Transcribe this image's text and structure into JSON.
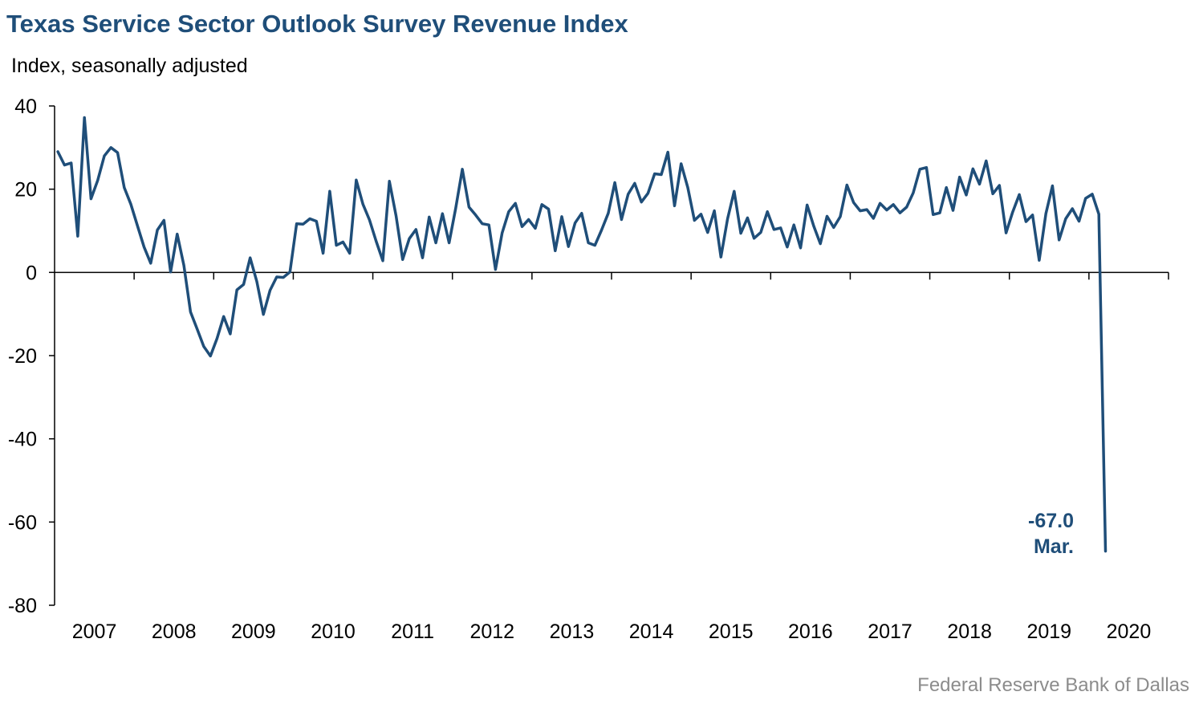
{
  "chart_data": {
    "type": "line",
    "title": "Texas Service Sector Outlook Survey Revenue Index",
    "subtitle": "Index, seasonally adjusted",
    "source": "Federal Reserve Bank of Dallas",
    "ylim": [
      -80,
      40
    ],
    "yticks": [
      40,
      20,
      0,
      -20,
      -40,
      -60,
      -80
    ],
    "ytick_labels": [
      "40",
      "20",
      "0",
      "-20",
      "-40",
      "-60",
      "-80"
    ],
    "x_start": "2007-01",
    "xticks": [
      "2007",
      "2008",
      "2009",
      "2010",
      "2011",
      "2012",
      "2013",
      "2014",
      "2015",
      "2016",
      "2017",
      "2018",
      "2019",
      "2020"
    ],
    "grid": false,
    "line_color": "#1f4e79",
    "series": [
      {
        "values": [
          29,
          25.8,
          26.3,
          8.7,
          37.2,
          17.7,
          22.1,
          28,
          30,
          28.8,
          20.4,
          16.4,
          11.2,
          6.1,
          2.2,
          10.2,
          12.5,
          0.1,
          9.2,
          1.7,
          -9.5,
          -13.6,
          -17.8,
          -20.1,
          -15.9,
          -10.6,
          -14.8,
          -4.2,
          -2.9,
          3.5,
          -2.2,
          -10.1,
          -4.3,
          -1.1,
          -1.2,
          0.1,
          11.7,
          11.6,
          12.9,
          12.3,
          4.6,
          19.5,
          6.5,
          7.3,
          4.6,
          22.2,
          16.4,
          12.6,
          7.5,
          2.8,
          21.9,
          13.6,
          3.1,
          8.1,
          10.3,
          3.5,
          13.3,
          7.1,
          14.1,
          7.1,
          15.4,
          24.8,
          15.7,
          13.8,
          11.7,
          11.4,
          0.7,
          9.5,
          14.6,
          16.6,
          11,
          12.7,
          10.6,
          16.3,
          15.2,
          5.2,
          13.4,
          6.2,
          11.9,
          14.2,
          7.1,
          6.5,
          10.2,
          14.2,
          21.6,
          12.7,
          18.8,
          21.4,
          16.9,
          19,
          23.7,
          23.5,
          28.9,
          16,
          26.1,
          20.4,
          12.5,
          14,
          9.6,
          14.8,
          3.7,
          12.9,
          19.5,
          9.4,
          13.1,
          8.2,
          9.6,
          14.6,
          10.3,
          10.7,
          6.1,
          11.4,
          5.9,
          16.2,
          11.1,
          6.9,
          13.5,
          10.8,
          13.4,
          21,
          16.8,
          14.8,
          15.1,
          13,
          16.6,
          15,
          16.3,
          14.3,
          15.7,
          19.1,
          24.8,
          25.2,
          13.9,
          14.3,
          20.4,
          14.9,
          22.9,
          18.6,
          24.9,
          21.2,
          26.8,
          18.9,
          20.9,
          9.5,
          14.5,
          18.7,
          12.2,
          13.8,
          2.9,
          14.1,
          20.8,
          7.8,
          12.9,
          15.3,
          12.3,
          17.8,
          18.8,
          14,
          -67
        ]
      }
    ],
    "annotation": {
      "value": "-67.0",
      "label": "Mar."
    }
  }
}
